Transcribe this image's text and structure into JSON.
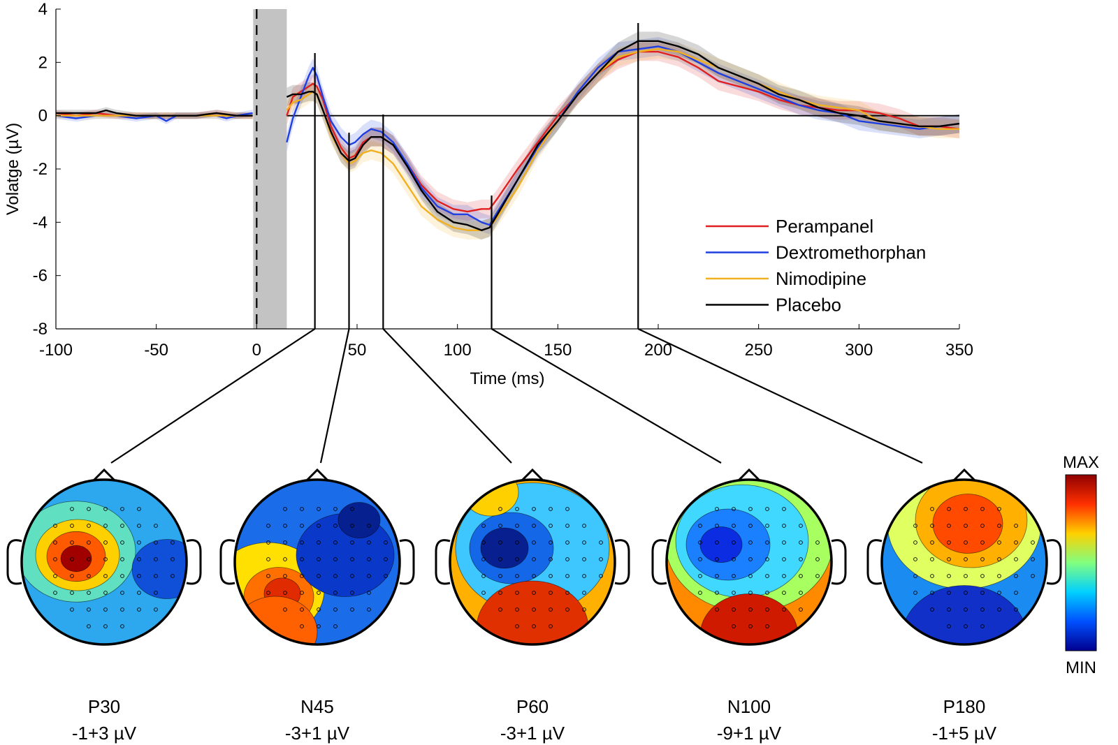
{
  "chart_data": {
    "type": "line",
    "title": "",
    "xlabel": "Time (ms)",
    "ylabel": "Volatge (µV)",
    "xlim": [
      -100,
      350
    ],
    "ylim": [
      -8,
      4
    ],
    "xticks": [
      -100,
      -50,
      0,
      50,
      100,
      150,
      200,
      250,
      300,
      350
    ],
    "yticks": [
      -8,
      -6,
      -4,
      -2,
      0,
      2,
      4
    ],
    "legend_position": "right",
    "artifact_window_ms": [
      0,
      15
    ],
    "series": [
      {
        "name": "Perampanel",
        "color": "#e02020",
        "baseline": [
          [
            -100,
            0.1
          ],
          [
            -90,
            0.0
          ],
          [
            -80,
            0.1
          ],
          [
            -70,
            0.0
          ],
          [
            -60,
            0.0
          ],
          [
            -50,
            0.0
          ],
          [
            -40,
            0.0
          ],
          [
            -30,
            0.0
          ],
          [
            -20,
            0.1
          ],
          [
            -10,
            0.0
          ],
          [
            -2,
            0.0
          ]
        ],
        "values": [
          [
            15,
            0.0
          ],
          [
            18,
            0.7
          ],
          [
            22,
            0.9
          ],
          [
            26,
            1.1
          ],
          [
            28,
            1.2
          ],
          [
            30,
            1.1
          ],
          [
            33,
            0.6
          ],
          [
            37,
            -0.4
          ],
          [
            42,
            -1.2
          ],
          [
            46,
            -1.6
          ],
          [
            49,
            -1.5
          ],
          [
            53,
            -1.0
          ],
          [
            57,
            -0.8
          ],
          [
            62,
            -0.8
          ],
          [
            68,
            -1.1
          ],
          [
            75,
            -1.8
          ],
          [
            82,
            -2.6
          ],
          [
            90,
            -3.2
          ],
          [
            98,
            -3.5
          ],
          [
            105,
            -3.6
          ],
          [
            112,
            -3.5
          ],
          [
            116,
            -3.5
          ],
          [
            120,
            -3.1
          ],
          [
            130,
            -2.0
          ],
          [
            140,
            -1.0
          ],
          [
            150,
            0.0
          ],
          [
            160,
            0.8
          ],
          [
            170,
            1.6
          ],
          [
            180,
            2.1
          ],
          [
            190,
            2.4
          ],
          [
            200,
            2.4
          ],
          [
            210,
            2.2
          ],
          [
            220,
            1.8
          ],
          [
            230,
            1.3
          ],
          [
            240,
            1.1
          ],
          [
            250,
            0.9
          ],
          [
            260,
            0.6
          ],
          [
            270,
            0.4
          ],
          [
            280,
            0.3
          ],
          [
            290,
            0.2
          ],
          [
            300,
            0.2
          ],
          [
            310,
            0.1
          ],
          [
            320,
            -0.1
          ],
          [
            330,
            -0.4
          ],
          [
            340,
            -0.4
          ],
          [
            350,
            -0.5
          ]
        ]
      },
      {
        "name": "Dextromethorphan",
        "color": "#1f3fe0",
        "baseline": [
          [
            -100,
            0.0
          ],
          [
            -90,
            -0.1
          ],
          [
            -80,
            0.0
          ],
          [
            -70,
            0.0
          ],
          [
            -60,
            -0.1
          ],
          [
            -50,
            0.0
          ],
          [
            -45,
            -0.2
          ],
          [
            -40,
            0.0
          ],
          [
            -30,
            0.0
          ],
          [
            -20,
            0.0
          ],
          [
            -15,
            -0.1
          ],
          [
            -10,
            0.0
          ],
          [
            -2,
            0.1
          ]
        ],
        "values": [
          [
            15,
            -1.0
          ],
          [
            18,
            -0.1
          ],
          [
            22,
            0.7
          ],
          [
            26,
            1.5
          ],
          [
            28,
            1.8
          ],
          [
            30,
            1.5
          ],
          [
            33,
            0.7
          ],
          [
            37,
            -0.2
          ],
          [
            42,
            -0.8
          ],
          [
            46,
            -1.1
          ],
          [
            49,
            -1.0
          ],
          [
            53,
            -0.7
          ],
          [
            57,
            -0.5
          ],
          [
            62,
            -0.6
          ],
          [
            68,
            -1.0
          ],
          [
            75,
            -1.8
          ],
          [
            82,
            -2.7
          ],
          [
            90,
            -3.4
          ],
          [
            98,
            -3.7
          ],
          [
            105,
            -3.7
          ],
          [
            112,
            -4.0
          ],
          [
            116,
            -4.1
          ],
          [
            120,
            -3.6
          ],
          [
            130,
            -2.4
          ],
          [
            140,
            -1.2
          ],
          [
            150,
            -0.2
          ],
          [
            160,
            0.9
          ],
          [
            170,
            1.8
          ],
          [
            180,
            2.4
          ],
          [
            190,
            2.5
          ],
          [
            200,
            2.6
          ],
          [
            210,
            2.4
          ],
          [
            220,
            2.0
          ],
          [
            230,
            1.6
          ],
          [
            240,
            1.3
          ],
          [
            250,
            1.0
          ],
          [
            260,
            0.7
          ],
          [
            270,
            0.4
          ],
          [
            280,
            0.2
          ],
          [
            290,
            0.1
          ],
          [
            300,
            -0.2
          ],
          [
            310,
            -0.3
          ],
          [
            320,
            -0.4
          ],
          [
            330,
            -0.5
          ],
          [
            340,
            -0.4
          ],
          [
            350,
            -0.3
          ]
        ]
      },
      {
        "name": "Nimodipine",
        "color": "#f0b020",
        "baseline": [
          [
            -100,
            0.0
          ],
          [
            -90,
            0.0
          ],
          [
            -80,
            0.0
          ],
          [
            -70,
            0.0
          ],
          [
            -60,
            0.0
          ],
          [
            -50,
            0.0
          ],
          [
            -40,
            0.0
          ],
          [
            -30,
            0.0
          ],
          [
            -20,
            0.0
          ],
          [
            -10,
            0.0
          ],
          [
            -2,
            0.0
          ]
        ],
        "values": [
          [
            15,
            0.2
          ],
          [
            18,
            0.5
          ],
          [
            22,
            0.6
          ],
          [
            26,
            0.8
          ],
          [
            28,
            0.9
          ],
          [
            30,
            0.8
          ],
          [
            33,
            0.2
          ],
          [
            37,
            -0.7
          ],
          [
            42,
            -1.4
          ],
          [
            46,
            -1.8
          ],
          [
            49,
            -1.7
          ],
          [
            53,
            -1.4
          ],
          [
            57,
            -1.3
          ],
          [
            62,
            -1.4
          ],
          [
            68,
            -1.8
          ],
          [
            75,
            -2.6
          ],
          [
            82,
            -3.4
          ],
          [
            90,
            -3.9
          ],
          [
            98,
            -4.2
          ],
          [
            105,
            -4.3
          ],
          [
            112,
            -4.3
          ],
          [
            116,
            -4.2
          ],
          [
            120,
            -3.8
          ],
          [
            130,
            -2.7
          ],
          [
            140,
            -1.3
          ],
          [
            150,
            -0.2
          ],
          [
            160,
            0.8
          ],
          [
            170,
            1.6
          ],
          [
            180,
            2.2
          ],
          [
            190,
            2.4
          ],
          [
            200,
            2.5
          ],
          [
            210,
            2.4
          ],
          [
            220,
            2.1
          ],
          [
            230,
            1.8
          ],
          [
            240,
            1.5
          ],
          [
            250,
            1.2
          ],
          [
            260,
            0.9
          ],
          [
            270,
            0.6
          ],
          [
            280,
            0.4
          ],
          [
            290,
            0.3
          ],
          [
            300,
            0.2
          ],
          [
            310,
            -0.2
          ],
          [
            320,
            -0.3
          ],
          [
            330,
            -0.4
          ],
          [
            340,
            -0.5
          ],
          [
            350,
            -0.5
          ]
        ]
      },
      {
        "name": "Placebo",
        "color": "#000000",
        "baseline": [
          [
            -100,
            0.1
          ],
          [
            -90,
            0.1
          ],
          [
            -80,
            0.1
          ],
          [
            -75,
            0.2
          ],
          [
            -70,
            0.1
          ],
          [
            -60,
            0.0
          ],
          [
            -50,
            0.0
          ],
          [
            -40,
            0.0
          ],
          [
            -30,
            0.0
          ],
          [
            -20,
            0.1
          ],
          [
            -10,
            0.0
          ],
          [
            -2,
            0.0
          ]
        ],
        "values": [
          [
            15,
            0.7
          ],
          [
            18,
            0.8
          ],
          [
            22,
            0.8
          ],
          [
            26,
            0.9
          ],
          [
            28,
            0.9
          ],
          [
            30,
            0.8
          ],
          [
            33,
            0.2
          ],
          [
            37,
            -0.6
          ],
          [
            42,
            -1.4
          ],
          [
            46,
            -1.7
          ],
          [
            49,
            -1.6
          ],
          [
            53,
            -1.1
          ],
          [
            57,
            -0.8
          ],
          [
            62,
            -0.8
          ],
          [
            68,
            -1.1
          ],
          [
            75,
            -1.9
          ],
          [
            82,
            -2.8
          ],
          [
            90,
            -3.6
          ],
          [
            98,
            -4.0
          ],
          [
            105,
            -4.1
          ],
          [
            112,
            -4.3
          ],
          [
            116,
            -4.2
          ],
          [
            120,
            -3.7
          ],
          [
            130,
            -2.4
          ],
          [
            140,
            -1.1
          ],
          [
            150,
            -0.2
          ],
          [
            160,
            0.8
          ],
          [
            170,
            1.6
          ],
          [
            180,
            2.4
          ],
          [
            190,
            2.8
          ],
          [
            200,
            2.8
          ],
          [
            210,
            2.6
          ],
          [
            220,
            2.3
          ],
          [
            230,
            1.8
          ],
          [
            240,
            1.5
          ],
          [
            250,
            1.2
          ],
          [
            260,
            0.8
          ],
          [
            270,
            0.6
          ],
          [
            280,
            0.3
          ],
          [
            290,
            0.1
          ],
          [
            300,
            0.0
          ],
          [
            310,
            -0.2
          ],
          [
            320,
            -0.3
          ],
          [
            330,
            -0.4
          ],
          [
            340,
            -0.4
          ],
          [
            350,
            -0.3
          ]
        ]
      }
    ],
    "markers": [
      {
        "time": 29,
        "label": "P30",
        "range": "-1+3 µV"
      },
      {
        "time": 46,
        "label": "N45",
        "range": "-3+1 µV"
      },
      {
        "time": 63,
        "label": "P60",
        "range": "-3+1 µV"
      },
      {
        "time": 117,
        "label": "N100",
        "range": "-9+1 µV"
      },
      {
        "time": 190,
        "label": "P180",
        "range": "-1+5 µV"
      }
    ],
    "colorbar": {
      "max_label": "MAX",
      "min_label": "MIN",
      "colors": [
        "#00008f",
        "#0050ff",
        "#00d0ff",
        "#80ff80",
        "#ffd000",
        "#ff3000",
        "#8f0000"
      ]
    }
  }
}
